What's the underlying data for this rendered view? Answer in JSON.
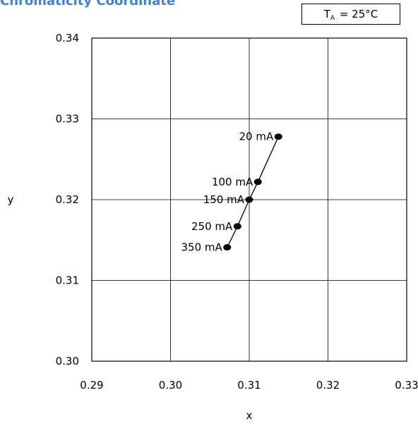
{
  "title": "Chromaticity Coordinate",
  "condition": {
    "symbol": "T",
    "subscript": "A",
    "rest": " = 25°C"
  },
  "chart_data": {
    "type": "line",
    "title": "Chromaticity Coordinate",
    "xlabel": "x",
    "ylabel": "y",
    "xlim": [
      0.29,
      0.33
    ],
    "ylim": [
      0.3,
      0.34
    ],
    "xticks": [
      "0.29",
      "0.30",
      "0.31",
      "0.32",
      "0.33"
    ],
    "yticks": [
      "0.30",
      "0.31",
      "0.32",
      "0.33",
      "0.34"
    ],
    "grid": true,
    "series": [
      {
        "points": [
          {
            "label": "20 mA",
            "x": 0.3137,
            "y": 0.3278
          },
          {
            "label": "100 mA",
            "x": 0.3111,
            "y": 0.3222
          },
          {
            "label": "150 mA",
            "x": 0.31,
            "y": 0.32
          },
          {
            "label": "250 mA",
            "x": 0.3085,
            "y": 0.3167
          },
          {
            "label": "350 mA",
            "x": 0.3072,
            "y": 0.3141
          }
        ]
      }
    ]
  }
}
